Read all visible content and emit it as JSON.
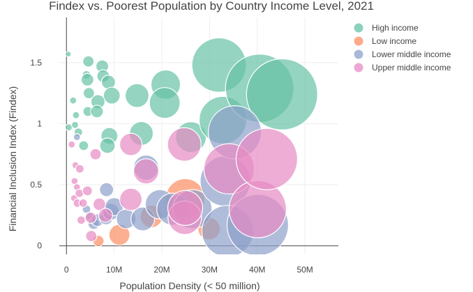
{
  "chart_data": {
    "type": "scatter",
    "subtype": "bubble",
    "title": "Findex vs. Poorest Population by Country Income Level, 2021",
    "xlabel": "Population Density (< 50 million)",
    "ylabel": "Financial Inclusion Index (Findex)",
    "xlim": [
      -1500000,
      57000000
    ],
    "ylim": [
      -0.07,
      1.87
    ],
    "x_ticks": [
      0,
      10000000,
      20000000,
      30000000,
      40000000,
      50000000
    ],
    "x_tick_labels": [
      "0",
      "10M",
      "20M",
      "30M",
      "40M",
      "50M"
    ],
    "y_ticks": [
      0,
      0.5,
      1,
      1.5
    ],
    "y_tick_labels": [
      "0",
      "0.5",
      "1",
      "1.5"
    ],
    "grid": true,
    "legend_position": "top-right",
    "colors": {
      "High income": "#66c2a5",
      "Low income": "#fc8d62",
      "Lower middle income": "#8da0cb",
      "Upper middle income": "#e78ac3"
    },
    "series": [
      {
        "name": "High income",
        "points": [
          {
            "x": 400000,
            "y": 1.57,
            "size": 4
          },
          {
            "x": 4600000,
            "y": 1.51,
            "size": 8
          },
          {
            "x": 7500000,
            "y": 1.47,
            "size": 9
          },
          {
            "x": 4200000,
            "y": 1.4,
            "size": 6
          },
          {
            "x": 7700000,
            "y": 1.39,
            "size": 9
          },
          {
            "x": 8800000,
            "y": 1.34,
            "size": 10
          },
          {
            "x": 4400000,
            "y": 1.36,
            "size": 9
          },
          {
            "x": 9500000,
            "y": 1.23,
            "size": 12
          },
          {
            "x": 4700000,
            "y": 1.25,
            "size": 8
          },
          {
            "x": 1400000,
            "y": 1.19,
            "size": 5
          },
          {
            "x": 6600000,
            "y": 1.18,
            "size": 10
          },
          {
            "x": 4500000,
            "y": 1.1,
            "size": 7
          },
          {
            "x": 6400000,
            "y": 1.1,
            "size": 9
          },
          {
            "x": 2000000,
            "y": 1.07,
            "size": 5
          },
          {
            "x": 500000,
            "y": 0.97,
            "size": 5
          },
          {
            "x": 1800000,
            "y": 0.99,
            "size": 5
          },
          {
            "x": 2500000,
            "y": 0.93,
            "size": 6
          },
          {
            "x": 3600000,
            "y": 0.82,
            "size": 7
          },
          {
            "x": 9000000,
            "y": 0.9,
            "size": 12
          },
          {
            "x": 8600000,
            "y": 0.82,
            "size": 11
          },
          {
            "x": 14800000,
            "y": 1.23,
            "size": 17
          },
          {
            "x": 20800000,
            "y": 1.32,
            "size": 21
          },
          {
            "x": 20600000,
            "y": 1.17,
            "size": 22
          },
          {
            "x": 15700000,
            "y": 0.92,
            "size": 17
          },
          {
            "x": 26100000,
            "y": 0.89,
            "size": 22
          },
          {
            "x": 32000000,
            "y": 1.48,
            "size": 39
          },
          {
            "x": 32800000,
            "y": 1.03,
            "size": 34
          },
          {
            "x": 40500000,
            "y": 1.29,
            "size": 49
          },
          {
            "x": 45200000,
            "y": 1.24,
            "size": 51
          }
        ]
      },
      {
        "name": "Low income",
        "points": [
          {
            "x": 6700000,
            "y": 0.04,
            "size": 8
          },
          {
            "x": 11100000,
            "y": 0.09,
            "size": 15
          },
          {
            "x": 17800000,
            "y": 0.24,
            "size": 16
          },
          {
            "x": 24900000,
            "y": 0.39,
            "size": 28
          },
          {
            "x": 29900000,
            "y": 0.14,
            "size": 16
          }
        ]
      },
      {
        "name": "Lower middle income",
        "points": [
          {
            "x": 2200000,
            "y": 0.89,
            "size": 5
          },
          {
            "x": 4200000,
            "y": 0.3,
            "size": 6
          },
          {
            "x": 4800000,
            "y": 0.24,
            "size": 6
          },
          {
            "x": 5700000,
            "y": 0.18,
            "size": 8
          },
          {
            "x": 6500000,
            "y": 0.21,
            "size": 9
          },
          {
            "x": 8300000,
            "y": 0.23,
            "size": 10
          },
          {
            "x": 8400000,
            "y": 0.46,
            "size": 10
          },
          {
            "x": 9300000,
            "y": 0.28,
            "size": 12
          },
          {
            "x": 10000000,
            "y": 0.32,
            "size": 13
          },
          {
            "x": 12500000,
            "y": 0.22,
            "size": 14
          },
          {
            "x": 16000000,
            "y": 0.22,
            "size": 17
          },
          {
            "x": 16700000,
            "y": 0.64,
            "size": 18
          },
          {
            "x": 19600000,
            "y": 0.34,
            "size": 21
          },
          {
            "x": 22300000,
            "y": 0.3,
            "size": 23
          },
          {
            "x": 26400000,
            "y": 0.3,
            "size": 28
          },
          {
            "x": 33300000,
            "y": 0.53,
            "size": 36
          },
          {
            "x": 35300000,
            "y": 0.93,
            "size": 38
          },
          {
            "x": 33800000,
            "y": 0.12,
            "size": 37
          },
          {
            "x": 40100000,
            "y": 0.17,
            "size": 44
          }
        ]
      },
      {
        "name": "Upper middle income",
        "points": [
          {
            "x": 1100000,
            "y": 0.83,
            "size": 5
          },
          {
            "x": 1900000,
            "y": 0.66,
            "size": 5
          },
          {
            "x": 2800000,
            "y": 0.63,
            "size": 6
          },
          {
            "x": 1700000,
            "y": 0.53,
            "size": 5
          },
          {
            "x": 2200000,
            "y": 0.48,
            "size": 5
          },
          {
            "x": 1600000,
            "y": 0.39,
            "size": 5
          },
          {
            "x": 2700000,
            "y": 0.43,
            "size": 6
          },
          {
            "x": 4400000,
            "y": 0.45,
            "size": 7
          },
          {
            "x": 2300000,
            "y": 0.35,
            "size": 6
          },
          {
            "x": 3500000,
            "y": 0.35,
            "size": 6
          },
          {
            "x": 3100000,
            "y": 0.21,
            "size": 6
          },
          {
            "x": 5100000,
            "y": 0.23,
            "size": 8
          },
          {
            "x": 5200000,
            "y": 0.08,
            "size": 8
          },
          {
            "x": 6100000,
            "y": 0.75,
            "size": 8
          },
          {
            "x": 6900000,
            "y": 0.34,
            "size": 9
          },
          {
            "x": 8200000,
            "y": 0.25,
            "size": 10
          },
          {
            "x": 13500000,
            "y": 0.38,
            "size": 16
          },
          {
            "x": 13500000,
            "y": 0.83,
            "size": 16
          },
          {
            "x": 16700000,
            "y": 0.61,
            "size": 18
          },
          {
            "x": 24700000,
            "y": 0.83,
            "size": 24
          },
          {
            "x": 24800000,
            "y": 0.23,
            "size": 24
          },
          {
            "x": 24900000,
            "y": 0.31,
            "size": 25
          },
          {
            "x": 34100000,
            "y": 0.63,
            "size": 36
          },
          {
            "x": 40100000,
            "y": 0.3,
            "size": 41
          },
          {
            "x": 42000000,
            "y": 0.71,
            "size": 44
          }
        ]
      }
    ]
  }
}
